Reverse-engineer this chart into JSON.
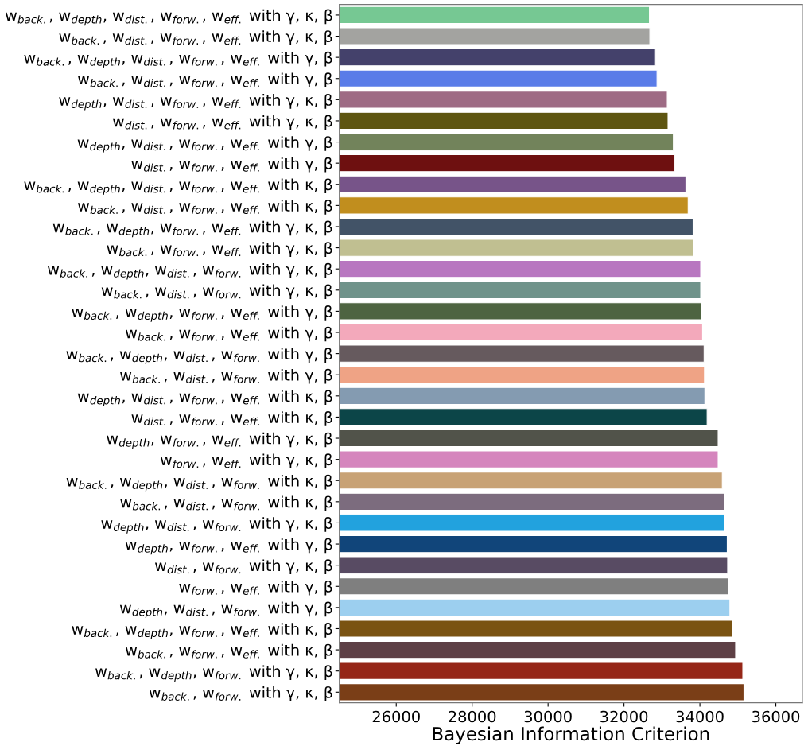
{
  "chart_data": {
    "type": "bar",
    "orientation": "horizontal",
    "xlabel": "Bayesian Information Criterion",
    "categories": [
      "w$_{back.}$, w$_{depth}$, w$_{dist.}$, w$_{forw.}$, w$_{eff.}$ with γ, κ, β",
      "w$_{back.}$, w$_{dist.}$, w$_{forw.}$, w$_{eff.}$ with γ, κ, β",
      "w$_{back.}$, w$_{depth}$, w$_{dist.}$, w$_{forw.}$, w$_{eff.}$ with γ, β",
      "w$_{back.}$, w$_{dist.}$, w$_{forw.}$, w$_{eff.}$ with γ, β",
      "w$_{depth}$, w$_{dist.}$, w$_{forw.}$, w$_{eff.}$ with γ, κ, β",
      "w$_{dist.}$, w$_{forw.}$, w$_{eff.}$ with γ, κ, β",
      "w$_{depth}$, w$_{dist.}$, w$_{forw.}$, w$_{eff.}$ with γ, β",
      "w$_{dist.}$, w$_{forw.}$, w$_{eff.}$ with γ, β",
      "w$_{back.}$, w$_{depth}$, w$_{dist.}$, w$_{forw.}$, w$_{eff.}$ with κ, β",
      "w$_{back.}$, w$_{dist.}$, w$_{forw.}$, w$_{eff.}$ with κ, β",
      "w$_{back.}$, w$_{depth}$, w$_{forw.}$, w$_{eff.}$ with γ, κ, β",
      "w$_{back.}$, w$_{forw.}$, w$_{eff.}$ with γ, κ, β",
      "w$_{back.}$, w$_{depth}$, w$_{dist.}$, w$_{forw.}$ with γ, κ, β",
      "w$_{back.}$, w$_{dist.}$, w$_{forw.}$ with γ, κ, β",
      "w$_{back.}$, w$_{depth}$, w$_{forw.}$, w$_{eff.}$ with γ, β",
      "w$_{back.}$, w$_{forw.}$, w$_{eff.}$ with γ, β",
      "w$_{back.}$, w$_{depth}$, w$_{dist.}$, w$_{forw.}$ with γ, β",
      "w$_{back.}$, w$_{dist.}$, w$_{forw.}$ with γ, β",
      "w$_{depth}$, w$_{dist.}$, w$_{forw.}$, w$_{eff.}$ with κ, β",
      "w$_{dist.}$, w$_{forw.}$, w$_{eff.}$ with κ, β",
      "w$_{depth}$, w$_{forw.}$, w$_{eff.}$ with γ, κ, β",
      "w$_{forw.}$, w$_{eff.}$ with γ, κ, β",
      "w$_{back.}$, w$_{depth}$, w$_{dist.}$, w$_{forw.}$ with κ, β",
      "w$_{back.}$, w$_{dist.}$, w$_{forw.}$ with κ, β",
      "w$_{depth}$, w$_{dist.}$, w$_{forw.}$ with γ, κ, β",
      "w$_{depth}$, w$_{forw.}$, w$_{eff.}$ with γ, β",
      "w$_{dist.}$, w$_{forw.}$ with γ, κ, β",
      "w$_{forw.}$, w$_{eff.}$ with γ, β",
      "w$_{depth}$, w$_{dist.}$, w$_{forw.}$ with γ, β",
      "w$_{back.}$, w$_{depth}$, w$_{forw.}$, w$_{eff.}$ with κ, β",
      "w$_{back.}$, w$_{forw.}$, w$_{eff.}$ with κ, β",
      "w$_{back.}$, w$_{depth}$, w$_{forw.}$ with γ, κ, β",
      "w$_{back.}$, w$_{forw.}$ with γ, κ, β"
    ],
    "values": [
      32670,
      32680,
      32830,
      32870,
      33140,
      33160,
      33300,
      33330,
      33630,
      33690,
      33820,
      33830,
      34020,
      34020,
      34040,
      34070,
      34110,
      34120,
      34130,
      34190,
      34480,
      34480,
      34590,
      34640,
      34640,
      34720,
      34730,
      34750,
      34790,
      34850,
      34940,
      35130,
      35160
    ],
    "colors": [
      "#76c893",
      "#a3a3a0",
      "#44416b",
      "#5a7ce8",
      "#9e6b84",
      "#5e5511",
      "#72835b",
      "#6e1010",
      "#775489",
      "#c18e1e",
      "#425367",
      "#c0bf91",
      "#b877c0",
      "#6f938a",
      "#4e6441",
      "#f3a9bb",
      "#665a5e",
      "#efa385",
      "#849bb1",
      "#0c4548",
      "#51534a",
      "#d585bd",
      "#c8a275",
      "#7c6c7e",
      "#22a2de",
      "#11457a",
      "#584b63",
      "#7f7f7f",
      "#9ccfef",
      "#7a5312",
      "#5e4045",
      "#952617",
      "#7a3e17"
    ],
    "xlim": [
      24500,
      36700
    ],
    "xticks": [
      26000,
      28000,
      30000,
      32000,
      34000,
      36000
    ],
    "grid": false
  }
}
